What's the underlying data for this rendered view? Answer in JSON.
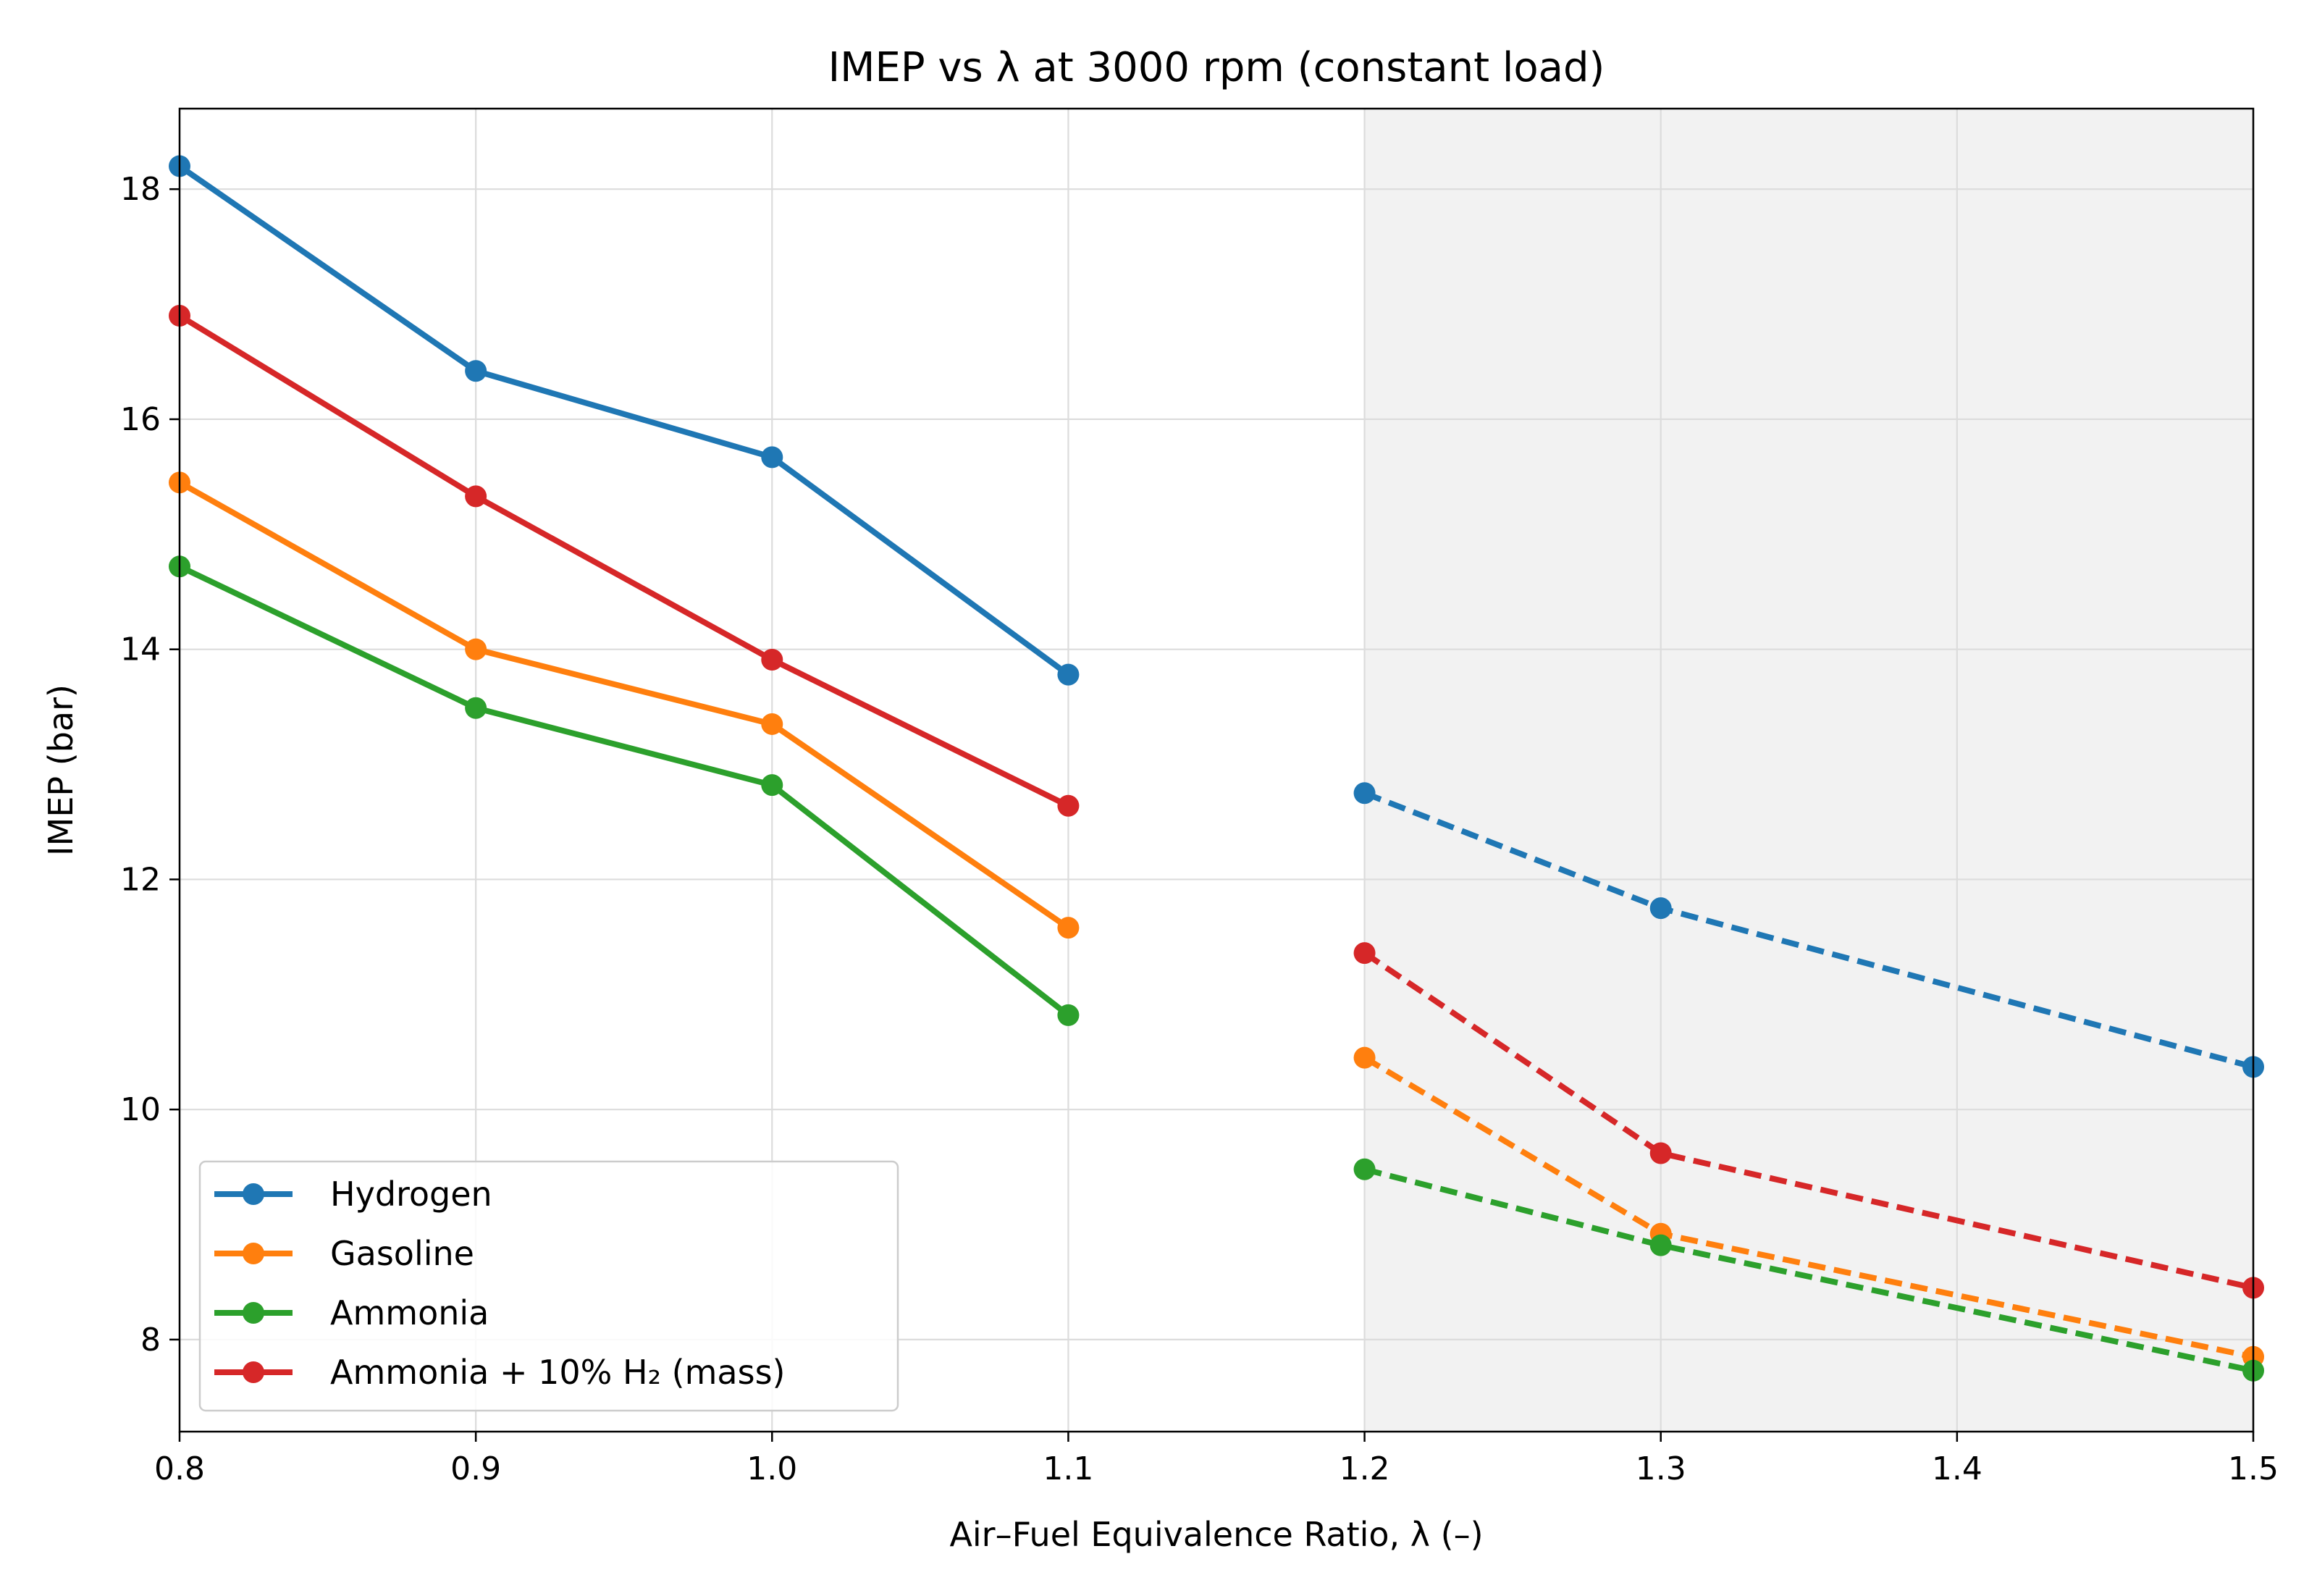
{
  "chart_data": {
    "type": "line",
    "title": "IMEP vs λ at 3000 rpm (constant load)",
    "xlabel": "Air–Fuel Equivalence Ratio, λ (–)",
    "ylabel": "IMEP (bar)",
    "xlim": [
      0.8,
      1.5
    ],
    "ylim": [
      7.2,
      18.7
    ],
    "xticks": [
      0.8,
      0.9,
      1.0,
      1.1,
      1.2,
      1.3,
      1.4,
      1.5
    ],
    "xtick_labels": [
      "0.8",
      "0.9",
      "1.0",
      "1.1",
      "1.2",
      "1.3",
      "1.4",
      "1.5"
    ],
    "yticks": [
      8,
      10,
      12,
      14,
      16,
      18
    ],
    "ytick_labels": [
      "8",
      "10",
      "12",
      "14",
      "16",
      "18"
    ],
    "grid": true,
    "shaded_region": {
      "x_from": 1.2,
      "x_to": 1.5,
      "color": "#f2f2f2"
    },
    "legend_position": "lower-left",
    "series": [
      {
        "name": "Hydrogen",
        "color": "#1f77b4",
        "solid": {
          "x": [
            0.8,
            0.9,
            1.0,
            1.1
          ],
          "y": [
            18.2,
            16.42,
            15.67,
            13.78
          ]
        },
        "dashed": {
          "x": [
            1.2,
            1.3,
            1.5
          ],
          "y": [
            12.75,
            11.75,
            10.37
          ]
        }
      },
      {
        "name": "Gasoline",
        "color": "#ff7f0e",
        "solid": {
          "x": [
            0.8,
            0.9,
            1.0,
            1.1
          ],
          "y": [
            15.45,
            14.0,
            13.35,
            11.58
          ]
        },
        "dashed": {
          "x": [
            1.2,
            1.3,
            1.5
          ],
          "y": [
            10.45,
            8.92,
            7.85
          ]
        }
      },
      {
        "name": "Ammonia",
        "color": "#2ca02c",
        "solid": {
          "x": [
            0.8,
            0.9,
            1.0,
            1.1
          ],
          "y": [
            14.72,
            13.49,
            12.82,
            10.82
          ]
        },
        "dashed": {
          "x": [
            1.2,
            1.3,
            1.5
          ],
          "y": [
            9.48,
            8.82,
            7.73
          ]
        }
      },
      {
        "name": "Ammonia + 10% H₂ (mass)",
        "color": "#d62728",
        "solid": {
          "x": [
            0.8,
            0.9,
            1.0,
            1.1
          ],
          "y": [
            16.9,
            15.33,
            13.91,
            12.64
          ]
        },
        "dashed": {
          "x": [
            1.2,
            1.3,
            1.5
          ],
          "y": [
            11.36,
            9.62,
            8.45
          ]
        }
      }
    ]
  }
}
